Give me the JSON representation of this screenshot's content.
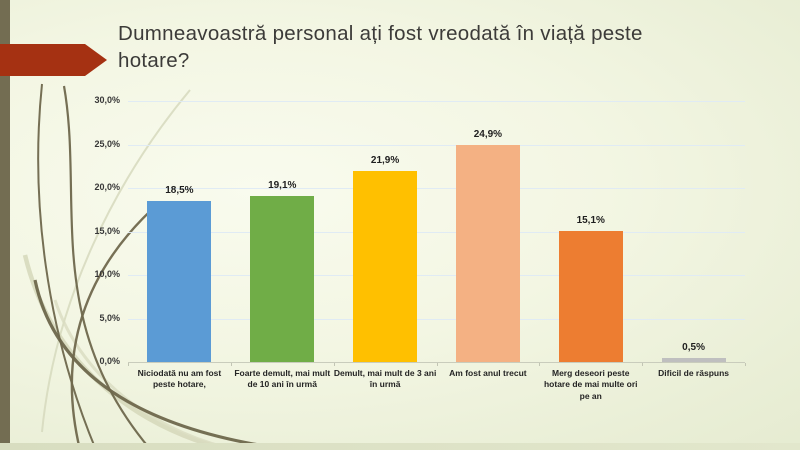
{
  "slide": {
    "title": "Dumneavoastră personal ați fost vreodată în viață peste hotare?"
  },
  "chart_data": {
    "type": "bar",
    "title": "Dumneavoastră personal ați fost vreodată în viață peste hotare?",
    "categories": [
      "Niciodată nu am fost peste hotare,",
      "Foarte demult, mai mult de 10 ani în urmă",
      "Demult, mai mult de 3 ani în urmă",
      "Am fost anul trecut",
      "Merg deseori peste hotare de mai multe ori pe an",
      "Dificil de răspuns"
    ],
    "values": [
      18.5,
      19.1,
      21.9,
      24.9,
      15.1,
      0.5
    ],
    "value_labels": [
      "18,5%",
      "19,1%",
      "21,9%",
      "24,9%",
      "15,1%",
      "0,5%"
    ],
    "bar_colors": [
      "#5B9BD5",
      "#70AD47",
      "#FFC000",
      "#F4B183",
      "#ED7D31",
      "#BFBFBF"
    ],
    "y_axis": {
      "min": 0,
      "max": 30,
      "step": 5,
      "tick_labels": [
        "0,0%",
        "5,0%",
        "10,0%",
        "15,0%",
        "20,0%",
        "25,0%",
        "30,0%"
      ]
    },
    "xlabel": "",
    "ylabel": "",
    "grid": true,
    "legend": false
  },
  "decor": {
    "arrow_color": "#A53112",
    "band_color": "#736D52",
    "curve_dark_color": "#6E674C",
    "curve_light_color": "#D3D6B8"
  }
}
